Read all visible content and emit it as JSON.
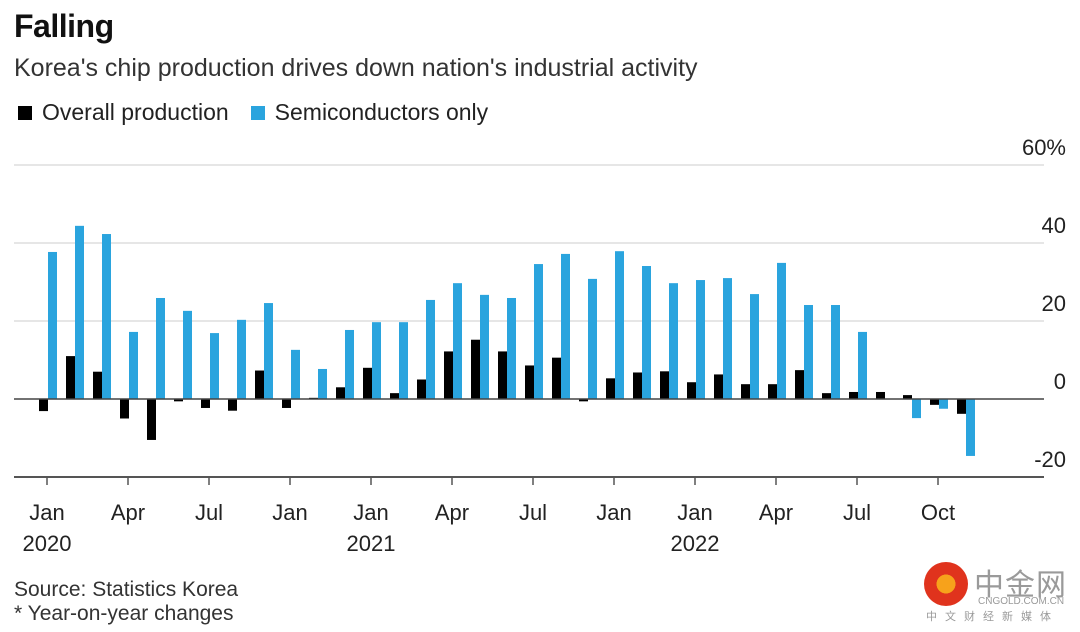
{
  "header": {
    "title": "Falling",
    "subtitle": "Korea's chip production drives down nation's industrial activity"
  },
  "legend": [
    {
      "label": "Overall production",
      "color": "#000000"
    },
    {
      "label": "Semiconductors only",
      "color": "#2aa4de"
    }
  ],
  "footer": {
    "source": "Source: Statistics Korea",
    "note": "* Year-on-year changes"
  },
  "watermark": {
    "name": "中金网",
    "url": "CNGOLD.COM.CN",
    "tagline": "中文财经新媒体"
  },
  "chart_data": {
    "type": "bar",
    "title": "Falling",
    "subtitle": "Korea's chip production drives down nation's industrial activity",
    "xlabel": "",
    "ylabel": "",
    "ylim": [
      -20,
      60
    ],
    "yticks": [
      {
        "value": 60,
        "label": "60%"
      },
      {
        "value": 40,
        "label": "40"
      },
      {
        "value": 20,
        "label": "20"
      },
      {
        "value": 0,
        "label": "0"
      },
      {
        "value": -20,
        "label": "-20"
      }
    ],
    "grid": true,
    "y_axis_side": "right",
    "legend_position": "top-left",
    "categories": [
      "2020-01",
      "2020-02",
      "2020-03",
      "2020-04",
      "2020-05",
      "2020-06",
      "2020-07",
      "2020-08",
      "2020-09",
      "2020-10",
      "2020-11",
      "2020-12",
      "2021-01",
      "2021-02",
      "2021-03",
      "2021-04",
      "2021-05",
      "2021-06",
      "2021-07",
      "2021-08",
      "2021-09",
      "2021-10",
      "2021-11",
      "2021-12",
      "2022-01",
      "2022-02",
      "2022-03",
      "2022-04",
      "2022-05",
      "2022-06",
      "2022-07",
      "2022-08",
      "2022-09",
      "2022-10",
      "2022-11"
    ],
    "xticks": [
      {
        "index": 0,
        "label": "Jan",
        "year": "2020"
      },
      {
        "index": 3,
        "label": "Apr",
        "year": ""
      },
      {
        "index": 6,
        "label": "Jul",
        "year": ""
      },
      {
        "index": 9,
        "label": "Jan",
        "year": ""
      },
      {
        "index": 12,
        "label": "Jan",
        "year": "2021"
      },
      {
        "index": 15,
        "label": "Apr",
        "year": ""
      },
      {
        "index": 18,
        "label": "Jul",
        "year": ""
      },
      {
        "index": 21,
        "label": "Jan",
        "year": ""
      },
      {
        "index": 24,
        "label": "Jan",
        "year": "2022"
      },
      {
        "index": 27,
        "label": "Apr",
        "year": ""
      },
      {
        "index": 30,
        "label": "Jul",
        "year": ""
      },
      {
        "index": 33,
        "label": "Oct",
        "year": ""
      }
    ],
    "series": [
      {
        "name": "Overall production",
        "color": "#000000",
        "values": [
          -3.1,
          11.0,
          7.0,
          -5.0,
          -10.5,
          -0.6,
          -2.3,
          -3.0,
          7.3,
          -2.3,
          0.3,
          3.0,
          8.0,
          1.5,
          5.0,
          12.2,
          15.2,
          12.2,
          8.6,
          10.6,
          -0.6,
          5.3,
          6.8,
          7.1,
          4.3,
          6.3,
          3.8,
          3.8,
          7.4,
          1.5,
          1.8,
          1.8,
          1.0,
          -1.5,
          -3.8
        ]
      },
      {
        "name": "Semiconductors only",
        "color": "#2aa4de",
        "values": [
          37.7,
          44.4,
          42.3,
          17.2,
          25.9,
          22.6,
          16.9,
          20.3,
          24.6,
          12.6,
          7.7,
          17.7,
          19.7,
          19.7,
          25.4,
          29.7,
          26.7,
          25.9,
          34.6,
          37.2,
          30.8,
          37.9,
          34.1,
          29.7,
          30.5,
          31.0,
          26.9,
          34.9,
          24.1,
          24.1,
          17.2,
          0.0,
          -4.9,
          -2.5,
          -14.6
        ]
      }
    ]
  }
}
